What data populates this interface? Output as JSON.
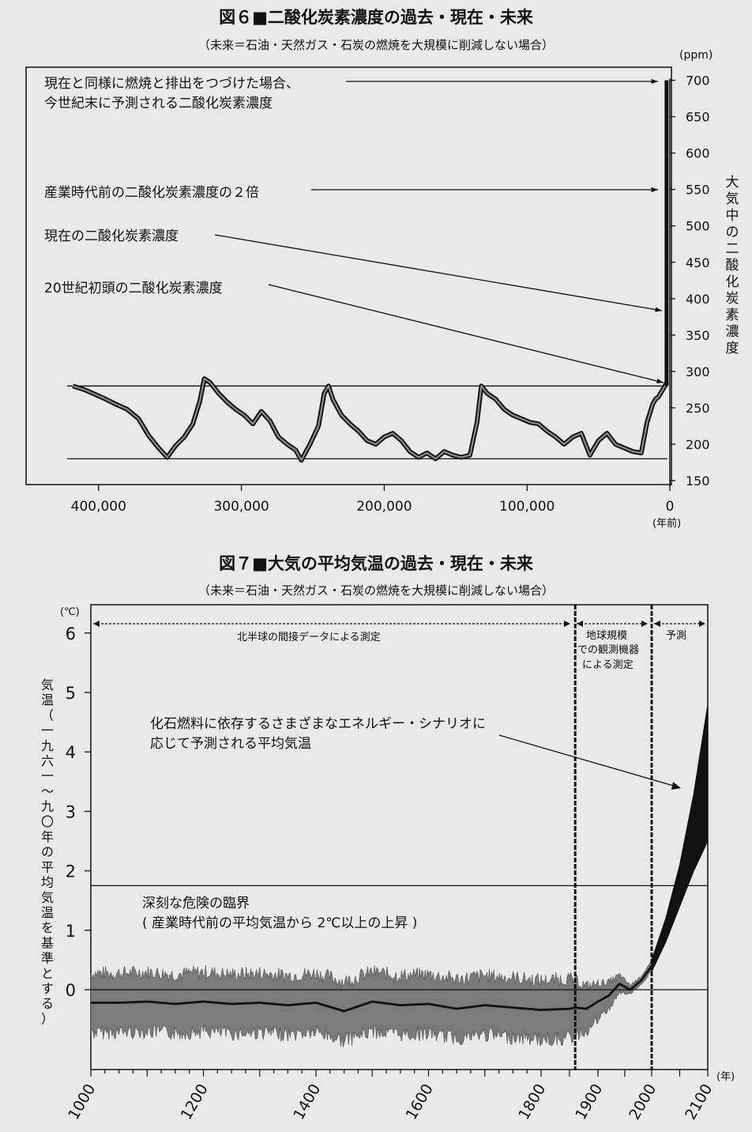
{
  "chart_data": [
    {
      "type": "line",
      "title": "図６■二酸化炭素濃度の過去・現在・未来",
      "subtitle": "（未来＝石油・天然ガス・石炭の燃焼を大規模に削減しない場合）",
      "unit_label": "(ppm)",
      "ylabel": "大気中の二酸化炭素濃度",
      "xunit_label": "(年前)",
      "xlim": [
        420000,
        0
      ],
      "ylim": [
        150,
        700
      ],
      "xticks": [
        400000,
        300000,
        200000,
        100000,
        0
      ],
      "xtick_labels": [
        "400,000",
        "300,000",
        "200,000",
        "100,000",
        "0"
      ],
      "yticks": [
        150,
        200,
        250,
        300,
        350,
        400,
        450,
        500,
        550,
        600,
        650,
        700
      ],
      "reference_lines": [
        280,
        180
      ],
      "annotations": [
        {
          "text": "現在と同様に燃焼と排出をつづけた場合、今世紀末に予測される二酸化炭素濃度",
          "line1": "現在と同様に燃焼と排出をつづけた場合、",
          "line2": "今世紀末に予測される二酸化炭素濃度",
          "value": 700
        },
        {
          "text": "産業時代前の二酸化炭素濃度の２倍",
          "value": 550
        },
        {
          "text": "現在の二酸化炭素濃度",
          "value": 380
        },
        {
          "text": "20世紀初頭の二酸化炭素濃度",
          "value": 285
        }
      ],
      "series": [
        {
          "x": [
            418000,
            410000,
            402000,
            395000,
            388000,
            380000,
            372000,
            365000,
            358000,
            352000,
            346000,
            340000,
            334000,
            329000,
            326000,
            322000,
            316000,
            310000,
            304000,
            298000,
            292000,
            286000,
            280000,
            274000,
            268000,
            262000,
            258000,
            252000,
            246000,
            242000,
            239000,
            236000,
            230000,
            224000,
            218000,
            212000,
            206000,
            200000,
            194000,
            188000,
            182000,
            176000,
            170000,
            164000,
            158000,
            152000,
            146000,
            140000,
            135000,
            132000,
            128000,
            122000,
            116000,
            110000,
            104000,
            98000,
            92000,
            86000,
            80000,
            74000,
            68000,
            62000,
            56000,
            50000,
            44000,
            38000,
            32000,
            26000,
            20000,
            16000,
            12000,
            10000,
            8000,
            5000,
            2000
          ],
          "values": [
            280,
            275,
            268,
            262,
            255,
            248,
            235,
            212,
            195,
            182,
            198,
            210,
            228,
            260,
            290,
            285,
            270,
            258,
            248,
            240,
            228,
            245,
            232,
            210,
            200,
            192,
            178,
            200,
            225,
            270,
            280,
            262,
            240,
            228,
            218,
            205,
            200,
            210,
            215,
            205,
            190,
            182,
            188,
            180,
            190,
            185,
            182,
            185,
            230,
            280,
            270,
            262,
            248,
            240,
            235,
            230,
            228,
            218,
            210,
            200,
            210,
            215,
            185,
            205,
            215,
            200,
            195,
            190,
            188,
            230,
            255,
            262,
            265,
            275,
            285
          ]
        },
        {
          "name": "future",
          "x": [
            2000,
            0
          ],
          "values": [
            280,
            700
          ]
        }
      ]
    },
    {
      "type": "area",
      "title": "図７■大気の平均気温の過去・現在・未来",
      "subtitle": "（未来＝石油・天然ガス・石炭の燃焼を大規模に削減しない場合）",
      "unit_label": "(℃)",
      "ylabel": "気温（一九六一〜九〇年の平均気温を基準とする）",
      "xunit_label": "(年)",
      "ylim": [
        -1,
        6.5
      ],
      "yticks": [
        0,
        1,
        2,
        3,
        4,
        5,
        6
      ],
      "xtick_labels": [
        "1000",
        "1200",
        "1400",
        "1600",
        "1800",
        "1900",
        "2000",
        "2100"
      ],
      "period_labels": {
        "p1": "北半球の間接データによる測定",
        "p2_line1": "地球規模",
        "p2_line2": "での観測機器",
        "p2_line3": "による測定",
        "p3": "予測"
      },
      "threshold": {
        "value": 1.75,
        "line1": "深刻な危険の臨界",
        "line2": "( 産業時代前の平均気温から 2℃以上の上昇 )"
      },
      "scenario_annotation": {
        "line1": "化石燃料に依存するさまざまなエネルギー・シナリオに",
        "line2": "応じて予測される平均気温"
      },
      "series": [
        {
          "x": [
            1000,
            1050,
            1100,
            1150,
            1200,
            1250,
            1300,
            1350,
            1400,
            1450,
            1500,
            1550,
            1600,
            1650,
            1700,
            1750,
            1800,
            1850,
            1860,
            1880,
            1900,
            1920,
            1940,
            1960,
            1980,
            2000
          ],
          "values": [
            -0.22,
            -0.22,
            -0.2,
            -0.24,
            -0.2,
            -0.24,
            -0.22,
            -0.26,
            -0.22,
            -0.36,
            -0.2,
            -0.26,
            -0.24,
            -0.32,
            -0.26,
            -0.3,
            -0.34,
            -0.32,
            -0.3,
            -0.32,
            -0.2,
            -0.1,
            0.1,
            0.0,
            0.15,
            0.4
          ],
          "uncertainty": 0.5
        },
        {
          "name": "projection",
          "x": [
            2000,
            2025,
            2050,
            2075,
            2100
          ],
          "low": [
            0.3,
            0.8,
            1.4,
            2.0,
            2.5
          ],
          "high": [
            0.5,
            1.2,
            2.1,
            3.3,
            4.8
          ]
        }
      ]
    }
  ]
}
